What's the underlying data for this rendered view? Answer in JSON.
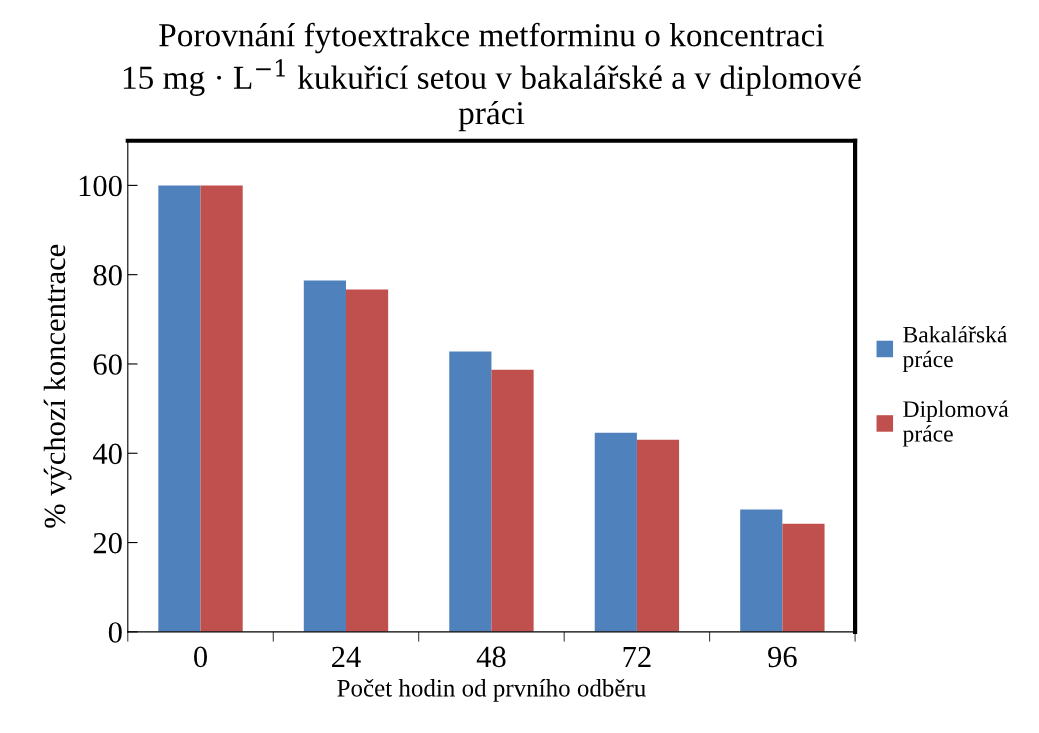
{
  "chart_data": {
    "type": "bar",
    "title": "Porovnání fytoextrakce metforminu o koncentraci\n15 mg · L$^{−1}$ kukuřicí setou v bakalářské a v diplomové\npráci",
    "xlabel": "Počet hodin od prvního odběru",
    "ylabel": "% výchozí koncentrace",
    "categories": [
      "0",
      "24",
      "48",
      "72",
      "96"
    ],
    "series": [
      {
        "name": "Bakalářská\npráce",
        "color": "#4f81bd",
        "values": [
          100,
          78.7,
          62.8,
          44.6,
          27.4
        ]
      },
      {
        "name": "Diplomová\npráce",
        "color": "#c0504d",
        "values": [
          100,
          76.7,
          58.7,
          43.0,
          24.2
        ]
      }
    ],
    "ylim": [
      0,
      110
    ],
    "yticks": [
      0,
      20,
      40,
      60,
      80,
      100
    ],
    "grid": false,
    "legend": "right"
  }
}
